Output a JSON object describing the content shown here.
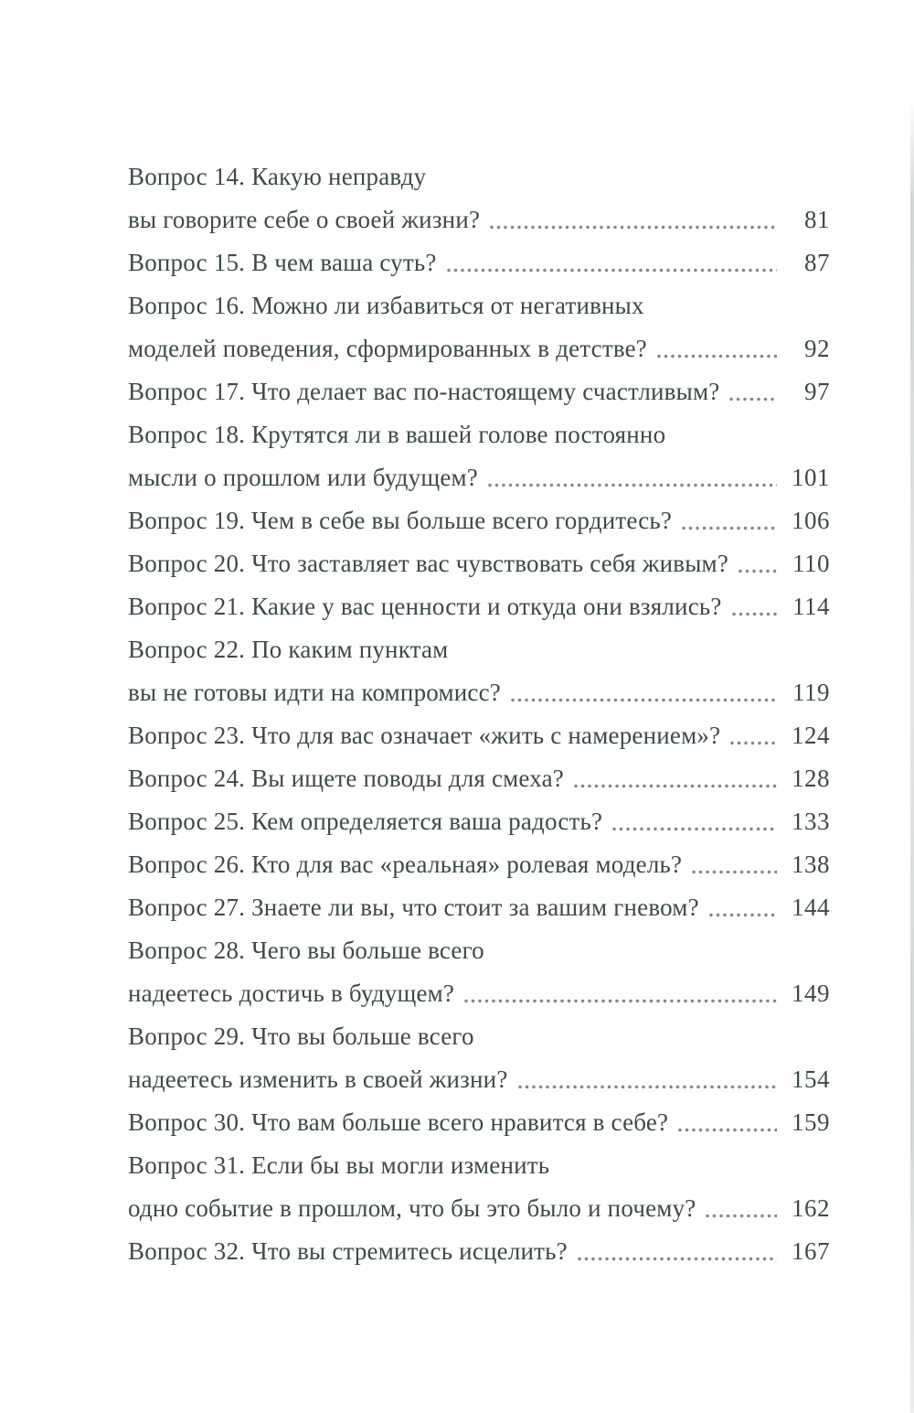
{
  "page": {
    "background_color": "#fefefe",
    "text_color": "#3e4b45",
    "leader_dot_color": "#7d8983"
  },
  "toc": {
    "entries": [
      {
        "lines": [
          "Вопрос 14. Какую неправду",
          "вы говорите себе о своей жизни?"
        ],
        "page": "81"
      },
      {
        "lines": [
          "Вопрос 15. В чем ваша суть?"
        ],
        "page": "87"
      },
      {
        "lines": [
          "Вопрос 16. Можно ли избавиться от негативных",
          "моделей поведения, сформированных в детстве?"
        ],
        "page": "92"
      },
      {
        "lines": [
          "Вопрос 17. Что делает вас по-настоящему счастливым?"
        ],
        "page": "97"
      },
      {
        "lines": [
          "Вопрос 18. Крутятся ли в вашей голове постоянно",
          "мысли о прошлом или будущем?"
        ],
        "page": "101"
      },
      {
        "lines": [
          "Вопрос 19. Чем в себе вы больше всего гордитесь?"
        ],
        "page": "106"
      },
      {
        "lines": [
          "Вопрос 20. Что заставляет вас чувствовать себя живым?"
        ],
        "page": "110"
      },
      {
        "lines": [
          "Вопрос 21. Какие у вас ценности и откуда они взялись?"
        ],
        "page": "114"
      },
      {
        "lines": [
          "Вопрос 22. По каким пунктам",
          "вы не готовы идти на компромисс?"
        ],
        "page": "119"
      },
      {
        "lines": [
          "Вопрос 23. Что для вас означает «жить с намерением»?"
        ],
        "page": "124"
      },
      {
        "lines": [
          "Вопрос 24. Вы ищете поводы для смеха?"
        ],
        "page": "128"
      },
      {
        "lines": [
          "Вопрос 25. Кем определяется ваша радость?"
        ],
        "page": "133"
      },
      {
        "lines": [
          "Вопрос 26. Кто для вас «реальная» ролевая модель?"
        ],
        "page": "138"
      },
      {
        "lines": [
          "Вопрос 27. Знаете ли вы, что стоит за вашим гневом?"
        ],
        "page": "144"
      },
      {
        "lines": [
          "Вопрос 28. Чего вы больше всего",
          "надеетесь достичь в будущем?"
        ],
        "page": "149"
      },
      {
        "lines": [
          "Вопрос 29. Что вы больше всего",
          "надеетесь изменить в своей жизни?"
        ],
        "page": "154"
      },
      {
        "lines": [
          "Вопрос 30. Что вам больше всего нравится в себе?"
        ],
        "page": "159"
      },
      {
        "lines": [
          "Вопрос 31. Если бы вы могли изменить",
          "одно событие в прошлом, что бы это было и почему?"
        ],
        "page": "162"
      },
      {
        "lines": [
          "Вопрос 32. Что вы стремитесь исцелить?"
        ],
        "page": "167"
      }
    ]
  }
}
